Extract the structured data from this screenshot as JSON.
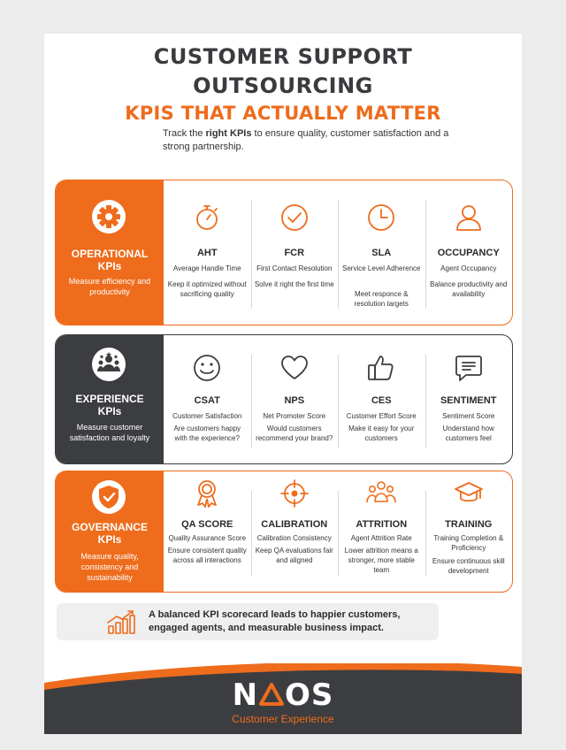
{
  "header": {
    "title_line1": "CUSTOMER SUPPORT",
    "title_line2": "OUTSOURCING",
    "title_line3": "KPIS THAT ACTUALLY MATTER",
    "subtitle_pre": "Track the ",
    "subtitle_bold": "right KPIs",
    "subtitle_post": " to ensure quality, customer satisfaction and a strong partnership."
  },
  "colors": {
    "accent": "#ee6c1c",
    "dark": "#3c3d40"
  },
  "sections": [
    {
      "icon": "gear-icon",
      "title_line1": "OPERATIONAL",
      "title_line2": "KPIs",
      "desc": "Measure efficiency and productivity",
      "kpis": [
        {
          "icon": "stopwatch-icon",
          "name": "AHT",
          "full": "Average Handle Time",
          "desc": "Keep it optimized without sacrificing quality"
        },
        {
          "icon": "check-circle-icon",
          "name": "FCR",
          "full": "First Contact Resolution",
          "desc": "Solve it right the first time"
        },
        {
          "icon": "clock-icon",
          "name": "SLA",
          "full": "Service Level Adherence",
          "desc": "Meet responce & resolution targets"
        },
        {
          "icon": "user-icon",
          "name": "OCCUPANCY",
          "full": "Agent Occupancy",
          "desc": "Balance productivity and availability"
        }
      ]
    },
    {
      "icon": "people-stars-icon",
      "title_line1": "EXPERIENCE",
      "title_line2": "KPIs",
      "desc": "Measure customer satisfaction and loyalty",
      "kpis": [
        {
          "icon": "smiley-icon",
          "name": "CSAT",
          "full": "Customer Satisfaction",
          "desc": "Are customers happy with the experience?"
        },
        {
          "icon": "heart-icon",
          "name": "NPS",
          "full": "Net Promoter Score",
          "desc": "Would customers recommend your brand?"
        },
        {
          "icon": "thumbs-up-icon",
          "name": "CES",
          "full": "Customer Effort Score",
          "desc": "Make it easy for your customers"
        },
        {
          "icon": "chat-bubble-icon",
          "name": "SENTIMENT",
          "full": "Sentiment Score",
          "desc": "Understand how customers feel"
        }
      ]
    },
    {
      "icon": "shield-check-icon",
      "title_line1": "GOVERNANCE",
      "title_line2": "KPIs",
      "desc": "Measure quality, consistency and sustainability",
      "kpis": [
        {
          "icon": "award-ribbon-icon",
          "name": "QA SCORE",
          "full": "Quality Assurance Score",
          "desc": "Ensure consistent quality across all interactions"
        },
        {
          "icon": "target-icon",
          "name": "CALIBRATION",
          "full": "Calibration Consistency",
          "desc": "Keep QA evaluations fair and aligned"
        },
        {
          "icon": "team-icon",
          "name": "ATTRITION",
          "full": "Agent Attrition Rate",
          "desc": "Lower attrition means a stronger, more stable team"
        },
        {
          "icon": "graduation-cap-icon",
          "name": "TRAINING",
          "full": "Training Completion & Proficiency",
          "desc": "Ensure continuous skill development"
        }
      ]
    }
  ],
  "footer_note": {
    "icon": "growth-chart-icon",
    "text": "A balanced KPI scorecard leads to happier customers, engaged agents, and measurable business impact."
  },
  "brand": {
    "logo_left": "N",
    "logo_right": "OS",
    "tagline": "Customer Experience"
  }
}
